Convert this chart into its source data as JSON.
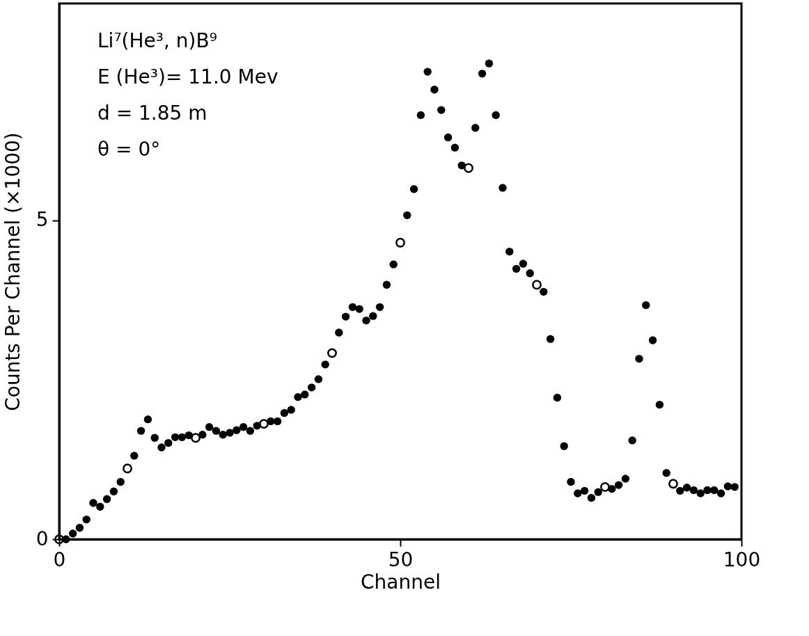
{
  "chart_data": {
    "type": "scatter",
    "xlabel": "Channel",
    "ylabel": "Counts Per Channel (×1000)",
    "annotations": [
      "Li⁷(He³, n)B⁹",
      "E (He³)= 11.0 Mev",
      "d = 1.85 m",
      "θ = 0°"
    ],
    "xlim": [
      0,
      100
    ],
    "xticks": [
      0,
      50,
      100
    ],
    "ylim": [
      0,
      8.4
    ],
    "yticks": [
      0,
      5
    ],
    "marker": "circle",
    "grid": false,
    "series": [
      {
        "color": "#000000",
        "x": [
          1,
          2,
          3,
          4,
          5,
          6,
          7,
          8,
          9,
          11,
          12,
          13,
          14,
          15,
          16,
          17,
          18,
          19,
          21,
          22,
          23,
          24,
          25,
          26,
          27,
          28,
          29,
          31,
          32,
          33,
          34,
          35,
          36,
          37,
          38,
          39,
          41,
          42,
          43,
          44,
          45,
          46,
          47,
          48,
          49,
          51,
          52,
          53,
          54,
          55,
          56,
          57,
          58,
          59,
          61,
          62,
          63,
          64,
          65,
          66,
          67,
          68,
          69,
          71,
          72,
          73,
          74,
          75,
          76,
          77,
          78,
          79,
          81,
          82,
          83,
          84,
          85,
          86,
          87,
          88,
          89,
          91,
          92,
          93,
          94,
          95,
          96,
          97,
          98,
          99
        ],
        "values": [
          0.0,
          0.09,
          0.18,
          0.31,
          0.57,
          0.51,
          0.63,
          0.75,
          0.9,
          1.31,
          1.7,
          1.88,
          1.59,
          1.44,
          1.51,
          1.6,
          1.6,
          1.63,
          1.64,
          1.76,
          1.7,
          1.64,
          1.67,
          1.71,
          1.76,
          1.7,
          1.78,
          1.85,
          1.85,
          1.98,
          2.03,
          2.23,
          2.27,
          2.38,
          2.51,
          2.74,
          3.24,
          3.49,
          3.64,
          3.61,
          3.43,
          3.5,
          3.64,
          3.99,
          4.31,
          5.08,
          5.49,
          6.65,
          7.33,
          7.05,
          6.73,
          6.3,
          6.14,
          5.86,
          6.45,
          7.3,
          7.46,
          6.65,
          5.51,
          4.51,
          4.24,
          4.32,
          4.17,
          3.88,
          3.14,
          2.22,
          1.46,
          0.9,
          0.72,
          0.76,
          0.65,
          0.74,
          0.79,
          0.85,
          0.95,
          1.55,
          2.83,
          3.67,
          3.12,
          2.11,
          1.04,
          0.76,
          0.81,
          0.77,
          0.72,
          0.77,
          0.77,
          0.72,
          0.83,
          0.82
        ]
      },
      {
        "color": "#000000",
        "x": [
          0,
          10,
          20,
          30,
          40,
          50,
          60,
          70,
          80,
          90
        ],
        "values": [
          0.0,
          1.11,
          1.59,
          1.81,
          2.92,
          4.65,
          5.82,
          3.99,
          0.82,
          0.87
        ]
      }
    ]
  }
}
